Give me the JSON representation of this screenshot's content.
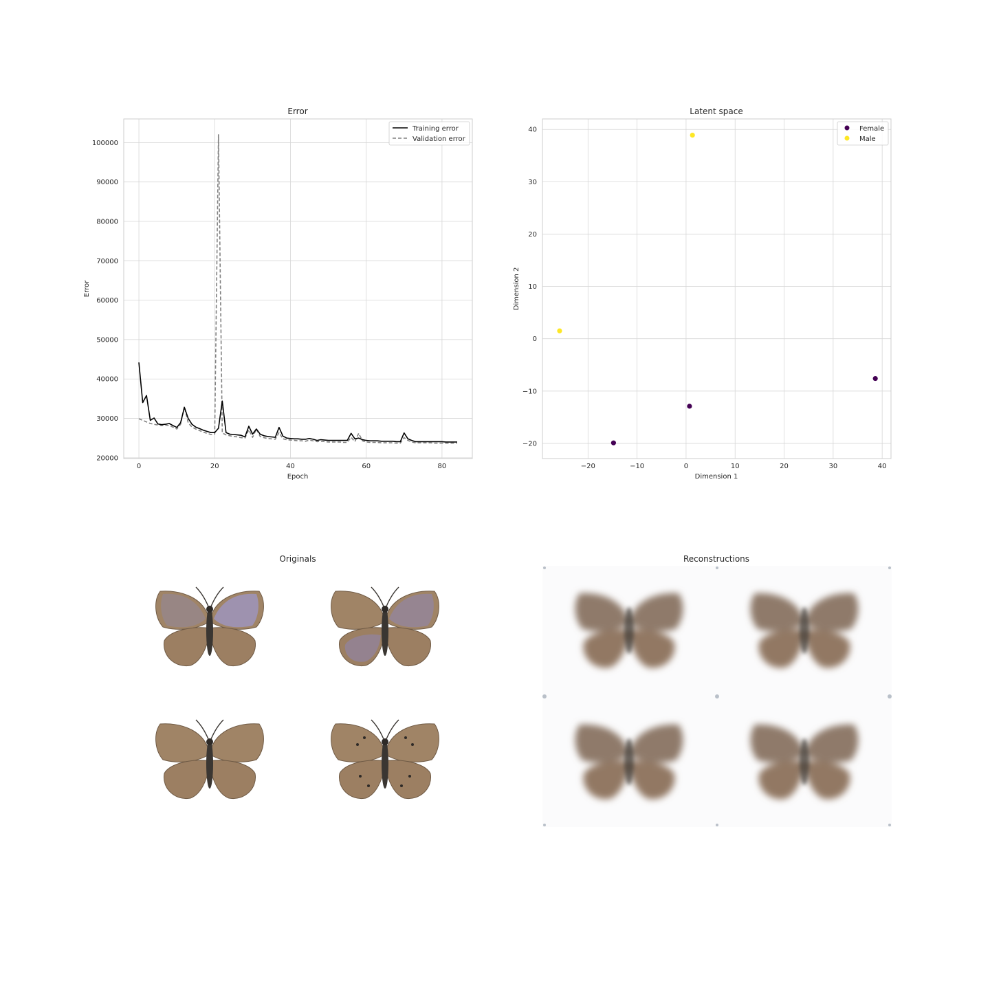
{
  "chart_data": [
    {
      "type": "line",
      "title": "Error",
      "xlabel": "Epoch",
      "ylabel": "Error",
      "xlim": [
        -4,
        88
      ],
      "ylim": [
        19800,
        106000
      ],
      "xticks": [
        0,
        20,
        40,
        60,
        80
      ],
      "yticks": [
        20000,
        30000,
        40000,
        50000,
        60000,
        70000,
        80000,
        90000,
        100000
      ],
      "grid": true,
      "legend": "top-right",
      "series": [
        {
          "name": "Training error",
          "color": "#000000",
          "style": "solid",
          "x": [
            0,
            1,
            2,
            3,
            4,
            5,
            6,
            7,
            8,
            9,
            10,
            11,
            12,
            13,
            14,
            15,
            16,
            17,
            18,
            19,
            20,
            21,
            22,
            23,
            24,
            25,
            26,
            27,
            28,
            29,
            30,
            31,
            32,
            33,
            34,
            35,
            36,
            37,
            38,
            39,
            40,
            41,
            42,
            43,
            44,
            45,
            46,
            47,
            48,
            49,
            50,
            51,
            52,
            53,
            54,
            55,
            56,
            57,
            58,
            59,
            60,
            61,
            62,
            63,
            64,
            65,
            66,
            67,
            68,
            69,
            70,
            71,
            72,
            73,
            74,
            75,
            76,
            77,
            78,
            79,
            80,
            81,
            82,
            83,
            84
          ],
          "y": [
            44200,
            34000,
            35800,
            29500,
            30100,
            28600,
            28400,
            28500,
            28700,
            28200,
            27700,
            28900,
            32800,
            30000,
            28500,
            27800,
            27400,
            27000,
            26700,
            26400,
            26400,
            27500,
            34400,
            26400,
            26000,
            25900,
            25800,
            25700,
            25300,
            28000,
            26000,
            27300,
            26000,
            25600,
            25400,
            25300,
            25200,
            27700,
            25500,
            25000,
            24900,
            24800,
            24800,
            24700,
            24700,
            24900,
            24700,
            24400,
            24600,
            24500,
            24400,
            24400,
            24400,
            24400,
            24400,
            24400,
            26200,
            24800,
            25000,
            24600,
            24400,
            24300,
            24300,
            24300,
            24200,
            24200,
            24200,
            24200,
            24100,
            24100,
            26300,
            24800,
            24400,
            24100,
            24100,
            24100,
            24100,
            24100,
            24100,
            24100,
            24100,
            24000,
            24000,
            24000,
            24000
          ]
        },
        {
          "name": "Validation error",
          "color": "#808080",
          "style": "dashed",
          "x": [
            0,
            1,
            2,
            3,
            4,
            5,
            6,
            7,
            8,
            9,
            10,
            11,
            12,
            13,
            14,
            15,
            16,
            17,
            18,
            19,
            20,
            21,
            22,
            23,
            24,
            25,
            26,
            27,
            28,
            29,
            30,
            31,
            32,
            33,
            34,
            35,
            36,
            37,
            38,
            39,
            40,
            41,
            42,
            43,
            44,
            45,
            46,
            47,
            48,
            49,
            50,
            51,
            52,
            53,
            54,
            55,
            56,
            57,
            58,
            59,
            60,
            61,
            62,
            63,
            64,
            65,
            66,
            67,
            68,
            69,
            70,
            71,
            72,
            73,
            74,
            75,
            76,
            77,
            78,
            79,
            80,
            81,
            82,
            83,
            84
          ],
          "y": [
            29900,
            29500,
            29100,
            28700,
            28500,
            28300,
            28200,
            28300,
            28200,
            27800,
            27300,
            28500,
            33000,
            28900,
            27800,
            27300,
            26900,
            26500,
            26200,
            25900,
            26000,
            102000,
            26300,
            25800,
            25600,
            25400,
            25300,
            25100,
            25000,
            27100,
            25200,
            27300,
            25400,
            25100,
            24900,
            24800,
            24700,
            26400,
            24800,
            24600,
            24500,
            24400,
            24300,
            24300,
            24200,
            24500,
            24300,
            24100,
            24200,
            24100,
            24000,
            24000,
            24000,
            24000,
            23900,
            23900,
            25200,
            24100,
            26200,
            24300,
            24000,
            23900,
            23900,
            23900,
            23800,
            23800,
            23800,
            23800,
            23700,
            23700,
            25100,
            24400,
            24000,
            23800,
            23800,
            23800,
            23800,
            23800,
            23700,
            23700,
            23700,
            23700,
            23700,
            23700,
            23700
          ]
        }
      ]
    },
    {
      "type": "scatter",
      "title": "Latent space",
      "xlabel": "Dimension 1",
      "ylabel": "Dimension 2",
      "xlim": [
        -29.3,
        41.8
      ],
      "ylim": [
        -22.9,
        42.0
      ],
      "xticks": [
        -20,
        -10,
        0,
        10,
        20,
        30,
        40
      ],
      "xtick_labels": [
        "−20",
        "−10",
        "0",
        "10",
        "20",
        "30",
        "40"
      ],
      "yticks": [
        -20,
        -10,
        0,
        10,
        20,
        30,
        40
      ],
      "ytick_labels": [
        "−20",
        "−10",
        "0",
        "10",
        "20",
        "30",
        "40"
      ],
      "grid": true,
      "legend": "top-right",
      "series": [
        {
          "name": "Female",
          "color": "#440154",
          "x": [
            -14.8,
            0.7,
            38.6
          ],
          "y": [
            -19.9,
            -12.9,
            -7.6
          ]
        },
        {
          "name": "Male",
          "color": "#fde725",
          "x": [
            -25.8,
            1.3
          ],
          "y": [
            1.5,
            38.9
          ]
        }
      ]
    }
  ],
  "panels": {
    "originals_title": "Originals",
    "reconstructions_title": "Reconstructions"
  },
  "colors": {
    "butterfly_brown": "#a88a6a",
    "butterfly_violet": "#9b96c4",
    "butterfly_body": "#3a3632",
    "recon_brown": "#8f7a6a"
  }
}
